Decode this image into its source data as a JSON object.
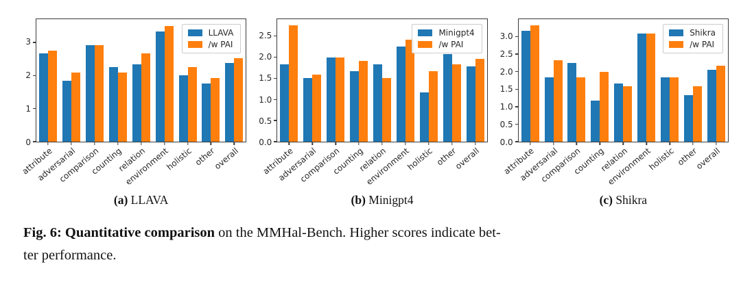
{
  "figure": {
    "caption_bold": "Fig. 6: Quantitative comparison",
    "caption_line1_rest": " on the MMHal-Bench. Higher scores indicate bet-",
    "caption_line2": "ter performance."
  },
  "colors": {
    "series_blue": "#1f77b4",
    "series_orange": "#ff7f0e"
  },
  "chart_data": [
    {
      "type": "bar",
      "caption_label": "(a)",
      "caption_text": "LLAVA",
      "categories": [
        "attribute",
        "adversarial",
        "comparison",
        "counting",
        "relation",
        "environment",
        "holistic",
        "other",
        "overall"
      ],
      "series": [
        {
          "name": "LLAVA",
          "color": "#1f77b4",
          "values": [
            2.67,
            1.83,
            2.92,
            2.25,
            2.33,
            3.33,
            2.0,
            1.75,
            2.38
          ]
        },
        {
          "name": "/w PAI",
          "color": "#ff7f0e",
          "values": [
            2.75,
            2.08,
            2.92,
            2.08,
            2.67,
            3.5,
            2.25,
            1.92,
            2.53
          ]
        }
      ],
      "yticks": [
        0,
        1,
        2,
        3
      ],
      "ytick_labels": [
        "0",
        "1",
        "2",
        "3"
      ],
      "ylim": [
        0,
        3.7
      ],
      "grid": false,
      "legend_position": "upper right",
      "xlabel_rotation": 40
    },
    {
      "type": "bar",
      "caption_label": "(b)",
      "caption_text": "Minigpt4",
      "categories": [
        "attribute",
        "adversarial",
        "comparison",
        "counting",
        "relation",
        "environment",
        "holistic",
        "other",
        "overall"
      ],
      "series": [
        {
          "name": "Minigpt4",
          "color": "#1f77b4",
          "values": [
            1.83,
            1.5,
            2.0,
            1.67,
            1.83,
            2.25,
            1.17,
            2.08,
            1.79
          ]
        },
        {
          "name": "/w PAI",
          "color": "#ff7f0e",
          "values": [
            2.75,
            1.58,
            2.0,
            1.92,
            1.5,
            2.42,
            1.67,
            1.83,
            1.96
          ]
        }
      ],
      "yticks": [
        0.0,
        0.5,
        1.0,
        1.5,
        2.0,
        2.5
      ],
      "ytick_labels": [
        "0.0",
        "0.5",
        "1.0",
        "1.5",
        "2.0",
        "2.5"
      ],
      "ylim": [
        0,
        2.9
      ],
      "grid": false,
      "legend_position": "upper right",
      "xlabel_rotation": 40
    },
    {
      "type": "bar",
      "caption_label": "(c)",
      "caption_text": "Shikra",
      "categories": [
        "attribute",
        "adversarial",
        "comparison",
        "counting",
        "relation",
        "environment",
        "holistic",
        "other",
        "overall"
      ],
      "series": [
        {
          "name": "Shikra",
          "color": "#1f77b4",
          "values": [
            3.17,
            1.83,
            2.25,
            1.17,
            1.67,
            3.08,
            1.83,
            1.33,
            2.05
          ]
        },
        {
          "name": "/w PAI",
          "color": "#ff7f0e",
          "values": [
            3.33,
            2.33,
            1.83,
            2.0,
            1.58,
            3.08,
            1.83,
            1.58,
            2.18
          ]
        }
      ],
      "yticks": [
        0.0,
        0.5,
        1.0,
        1.5,
        2.0,
        2.5,
        3.0
      ],
      "ytick_labels": [
        "0.0",
        "0.5",
        "1.0",
        "1.5",
        "2.0",
        "2.5",
        "3.0"
      ],
      "ylim": [
        0,
        3.5
      ],
      "grid": false,
      "legend_position": "upper right",
      "xlabel_rotation": 40
    }
  ]
}
